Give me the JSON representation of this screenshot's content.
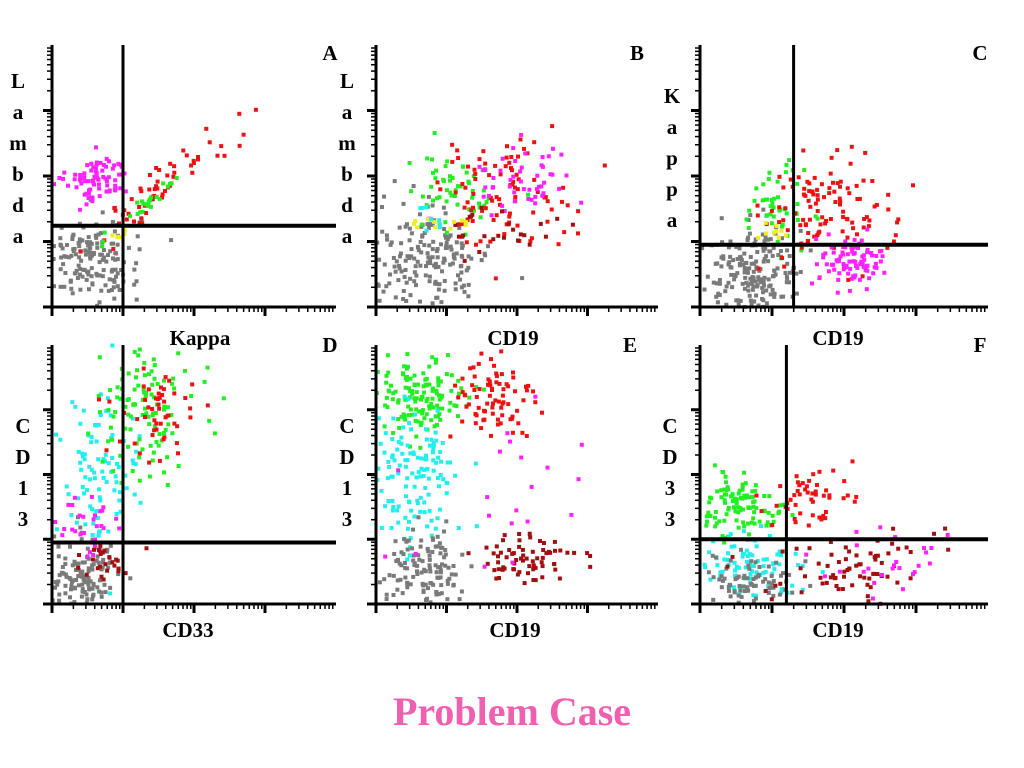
{
  "title": "Problem Case",
  "colors": {
    "title": "#f060b0",
    "gray": "#7a7a7a",
    "magenta": "#ff22ff",
    "red": "#ee1111",
    "green": "#22ee22",
    "cyan": "#22eeee",
    "darkred": "#a01010",
    "yellow": "#eeee22",
    "axis": "#000000"
  },
  "chart_data": [
    {
      "type": "scatter",
      "panel": "A",
      "xlabel": "Kappa",
      "ylabel": "Lambda",
      "xlim": [
        0,
        4
      ],
      "ylim": [
        0,
        4
      ],
      "quadrant_x": 1.0,
      "quadrant_y": 1.24,
      "populations": [
        {
          "color": "gray",
          "cx": 0.55,
          "cy": 0.75,
          "sx": 0.35,
          "sy": 0.35,
          "n": 160
        },
        {
          "color": "magenta",
          "cx": 0.65,
          "cy": 1.95,
          "sx": 0.22,
          "sy": 0.18,
          "n": 80
        },
        {
          "color": "red",
          "cx": 1.6,
          "cy": 1.9,
          "sx": 0.5,
          "sy": 0.45,
          "n": 60,
          "rho": 0.92
        },
        {
          "color": "green",
          "cx": 1.35,
          "cy": 1.6,
          "sx": 0.25,
          "sy": 0.25,
          "n": 25,
          "rho": 0.9
        },
        {
          "color": "yellow",
          "cx": 1.0,
          "cy": 1.15,
          "sx": 0.08,
          "sy": 0.1,
          "n": 6
        }
      ]
    },
    {
      "type": "scatter",
      "panel": "B",
      "xlabel": "CD19",
      "ylabel": "Lambda",
      "xlim": [
        0,
        4
      ],
      "ylim": [
        0,
        4
      ],
      "quadrant_x": null,
      "quadrant_y": null,
      "populations": [
        {
          "color": "gray",
          "cx": 0.75,
          "cy": 0.8,
          "sx": 0.45,
          "sy": 0.4,
          "n": 180
        },
        {
          "color": "green",
          "cx": 1.1,
          "cy": 1.75,
          "sx": 0.4,
          "sy": 0.3,
          "n": 55
        },
        {
          "color": "red",
          "cx": 1.8,
          "cy": 1.75,
          "sx": 0.5,
          "sy": 0.4,
          "n": 90
        },
        {
          "color": "magenta",
          "cx": 2.1,
          "cy": 1.95,
          "sx": 0.35,
          "sy": 0.3,
          "n": 50
        },
        {
          "color": "darkred",
          "cx": 1.8,
          "cy": 1.2,
          "sx": 0.35,
          "sy": 0.2,
          "n": 25
        },
        {
          "color": "yellow",
          "cx": 0.95,
          "cy": 1.3,
          "sx": 0.2,
          "sy": 0.08,
          "n": 12
        },
        {
          "color": "cyan",
          "cx": 0.8,
          "cy": 1.35,
          "sx": 0.15,
          "sy": 0.1,
          "n": 8
        }
      ]
    },
    {
      "type": "scatter",
      "panel": "C",
      "xlabel": "CD19",
      "ylabel": "Kappa",
      "xlim": [
        0,
        4
      ],
      "ylim": [
        0,
        4
      ],
      "quadrant_x": 1.3,
      "quadrant_y": 0.95,
      "populations": [
        {
          "color": "gray",
          "cx": 0.75,
          "cy": 0.5,
          "sx": 0.35,
          "sy": 0.35,
          "n": 200
        },
        {
          "color": "green",
          "cx": 1.05,
          "cy": 1.55,
          "sx": 0.2,
          "sy": 0.3,
          "n": 45
        },
        {
          "color": "red",
          "cx": 1.8,
          "cy": 1.5,
          "sx": 0.45,
          "sy": 0.4,
          "n": 110
        },
        {
          "color": "magenta",
          "cx": 2.1,
          "cy": 0.7,
          "sx": 0.22,
          "sy": 0.2,
          "n": 90
        },
        {
          "color": "yellow",
          "cx": 1.05,
          "cy": 1.15,
          "sx": 0.12,
          "sy": 0.06,
          "n": 10
        }
      ]
    },
    {
      "type": "scatter",
      "panel": "D",
      "xlabel": "CD33",
      "ylabel": "CD13",
      "xlim": [
        0,
        4
      ],
      "ylim": [
        0,
        4
      ],
      "quadrant_x": 1.0,
      "quadrant_y": 0.95,
      "populations": [
        {
          "color": "gray",
          "cx": 0.45,
          "cy": 0.4,
          "sx": 0.25,
          "sy": 0.3,
          "n": 130
        },
        {
          "color": "cyan",
          "cx": 0.65,
          "cy": 2.0,
          "sx": 0.3,
          "sy": 0.6,
          "n": 90
        },
        {
          "color": "green",
          "cx": 1.35,
          "cy": 3.0,
          "sx": 0.35,
          "sy": 0.45,
          "n": 110
        },
        {
          "color": "red",
          "cx": 1.45,
          "cy": 2.9,
          "sx": 0.3,
          "sy": 0.4,
          "n": 50
        },
        {
          "color": "magenta",
          "cx": 0.55,
          "cy": 1.25,
          "sx": 0.25,
          "sy": 0.25,
          "n": 30
        },
        {
          "color": "darkred",
          "cx": 0.7,
          "cy": 0.65,
          "sx": 0.2,
          "sy": 0.15,
          "n": 25
        }
      ]
    },
    {
      "type": "scatter",
      "panel": "E",
      "xlabel": "CD19",
      "ylabel": "CD13",
      "xlim": [
        0,
        4
      ],
      "ylim": [
        0,
        4
      ],
      "quadrant_x": null,
      "quadrant_y": null,
      "populations": [
        {
          "color": "green",
          "cx": 0.6,
          "cy": 3.2,
          "sx": 0.35,
          "sy": 0.35,
          "n": 140
        },
        {
          "color": "red",
          "cx": 1.65,
          "cy": 3.15,
          "sx": 0.3,
          "sy": 0.35,
          "n": 80
        },
        {
          "color": "cyan",
          "cx": 0.5,
          "cy": 1.9,
          "sx": 0.35,
          "sy": 0.6,
          "n": 130
        },
        {
          "color": "gray",
          "cx": 0.65,
          "cy": 0.5,
          "sx": 0.35,
          "sy": 0.3,
          "n": 130
        },
        {
          "color": "darkred",
          "cx": 2.1,
          "cy": 0.7,
          "sx": 0.4,
          "sy": 0.2,
          "n": 70
        },
        {
          "color": "magenta",
          "cx": 1.9,
          "cy": 1.5,
          "sx": 0.7,
          "sy": 0.6,
          "n": 20
        }
      ]
    },
    {
      "type": "scatter",
      "panel": "F",
      "xlabel": "CD19",
      "ylabel": "CD33",
      "xlim": [
        0,
        4
      ],
      "ylim": [
        0,
        4
      ],
      "quadrant_x": 1.2,
      "quadrant_y": 1.0,
      "populations": [
        {
          "color": "green",
          "cx": 0.6,
          "cy": 1.5,
          "sx": 0.3,
          "sy": 0.25,
          "n": 110
        },
        {
          "color": "red",
          "cx": 1.55,
          "cy": 1.65,
          "sx": 0.3,
          "sy": 0.2,
          "n": 50
        },
        {
          "color": "cyan",
          "cx": 0.6,
          "cy": 0.6,
          "sx": 0.35,
          "sy": 0.25,
          "n": 90
        },
        {
          "color": "gray",
          "cx": 0.75,
          "cy": 0.35,
          "sx": 0.3,
          "sy": 0.2,
          "n": 80
        },
        {
          "color": "darkred",
          "cx": 2.2,
          "cy": 0.55,
          "sx": 0.55,
          "sy": 0.3,
          "n": 75
        },
        {
          "color": "magenta",
          "cx": 2.5,
          "cy": 0.65,
          "sx": 0.5,
          "sy": 0.25,
          "n": 25
        }
      ]
    }
  ]
}
